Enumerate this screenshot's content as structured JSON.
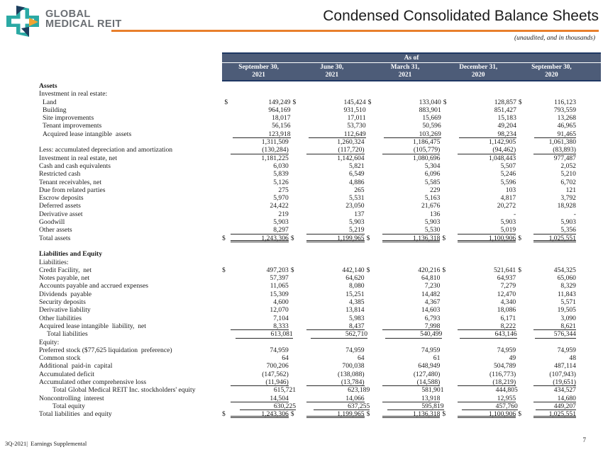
{
  "logo": {
    "name_line1": "GLOBAL",
    "name_line2": "MEDICAL REIT",
    "teal": "#2BA9A4",
    "navy": "#1D3E5E",
    "orange": "#F0A432"
  },
  "header": {
    "title": "Condensed Consolidated Balance Sheets",
    "subtitle": "(unaudited, and in thousands)",
    "rule_color": "#E87F2C"
  },
  "footer": {
    "left": "3Q-2021|  Earnings Supplemental",
    "page": "7"
  },
  "table": {
    "header_bg": "#4D5C78",
    "header_border": "#1F3864",
    "spanner": "As of",
    "columns": [
      {
        "line1": "September 30,",
        "line2": "2021"
      },
      {
        "line1": "June 30,",
        "line2": "2021"
      },
      {
        "line1": "March 31,",
        "line2": "2021"
      },
      {
        "line1": "December 31,",
        "line2": "2020"
      },
      {
        "line1": "September 30,",
        "line2": "2020"
      }
    ],
    "rows": [
      {
        "label": "Assets",
        "bold": true
      },
      {
        "label": "Investment in real estate:"
      },
      {
        "label": "Land",
        "indent": 1,
        "dollar": true,
        "values": [
          "149,249",
          "145,424",
          "133,040",
          "128,857",
          "116,123"
        ]
      },
      {
        "label": "Building",
        "indent": 1,
        "values": [
          "964,169",
          "931,510",
          "883,901",
          "851,427",
          "793,559"
        ]
      },
      {
        "label": "Site improvements",
        "indent": 1,
        "values": [
          "18,017",
          "17,011",
          "15,669",
          "15,183",
          "13,268"
        ]
      },
      {
        "label": "Tenant improvements",
        "indent": 1,
        "values": [
          "56,156",
          "53,730",
          "50,596",
          "49,204",
          "46,965"
        ]
      },
      {
        "label": "Acquired lease intangible  assets",
        "indent": 1,
        "rule": "bottom",
        "values": [
          "123,918",
          "112,649",
          "103,269",
          "98,234",
          "91,465"
        ]
      },
      {
        "label": "",
        "values": [
          "1,311,509",
          "1,260,324",
          "1,186,475",
          "1,142,905",
          "1,061,380"
        ]
      },
      {
        "label": "Less: accumulated depreciation and amortization",
        "rule": "bottom",
        "values": [
          "(130,284)",
          "(117,720)",
          "(105,779)",
          "(94,462)",
          "(83,893)"
        ]
      },
      {
        "label": "Investment in real estate, net",
        "values": [
          "1,181,225",
          "1,142,604",
          "1,080,696",
          "1,048,443",
          "977,487"
        ]
      },
      {
        "label": "Cash and cash equivalents",
        "values": [
          "6,030",
          "5,821",
          "5,304",
          "5,507",
          "2,052"
        ]
      },
      {
        "label": "Restricted cash",
        "values": [
          "5,839",
          "6,549",
          "6,096",
          "5,246",
          "5,210"
        ]
      },
      {
        "label": "Tenant receivables, net",
        "values": [
          "5,126",
          "4,886",
          "5,585",
          "5,596",
          "6,702"
        ]
      },
      {
        "label": "Due from related parties",
        "values": [
          "275",
          "265",
          "229",
          "103",
          "121"
        ]
      },
      {
        "label": "Escrow deposits",
        "values": [
          "5,970",
          "5,531",
          "5,163",
          "4,817",
          "3,792"
        ]
      },
      {
        "label": "Deferred assets",
        "values": [
          "24,422",
          "23,050",
          "21,676",
          "20,272",
          "18,928"
        ]
      },
      {
        "label": "Derivative asset",
        "values": [
          "219",
          "137",
          "136",
          "-",
          "-"
        ]
      },
      {
        "label": "Goodwill",
        "values": [
          "5,903",
          "5,903",
          "5,903",
          "5,903",
          "5,903"
        ]
      },
      {
        "label": "Other assets",
        "rule": "bottom",
        "values": [
          "8,297",
          "5,219",
          "5,530",
          "5,019",
          "5,356"
        ]
      },
      {
        "label": "Total assets",
        "dollar": true,
        "rule": "double",
        "values": [
          "1,243,306",
          "1,199,965",
          "1,136,318",
          "1,100,906",
          "1,025,551"
        ]
      },
      {
        "spacer": true
      },
      {
        "label": "Liabilities and Equity",
        "bold": true
      },
      {
        "label": "Liabilities:"
      },
      {
        "label": "Credit Facility,  net",
        "dollar": true,
        "values": [
          "497,203",
          "442,140",
          "420,216",
          "521,641",
          "454,325"
        ]
      },
      {
        "label": "Notes payable, net",
        "values": [
          "57,397",
          "64,620",
          "64,810",
          "64,937",
          "65,060"
        ]
      },
      {
        "label": "Accounts payable and accrued expenses",
        "values": [
          "11,065",
          "8,080",
          "7,230",
          "7,279",
          "8,329"
        ]
      },
      {
        "label": "Dividends  payable",
        "values": [
          "15,309",
          "15,251",
          "14,482",
          "12,470",
          "11,843"
        ]
      },
      {
        "label": "Security deposits",
        "values": [
          "4,600",
          "4,385",
          "4,367",
          "4,340",
          "5,571"
        ]
      },
      {
        "label": "Derivative liability",
        "values": [
          "12,070",
          "13,814",
          "14,603",
          "18,086",
          "19,505"
        ]
      },
      {
        "label": "Other liabilities",
        "values": [
          "7,104",
          "5,983",
          "6,793",
          "6,171",
          "3,090"
        ]
      },
      {
        "label": "Acquired lease intangible  liability,  net",
        "rule": "bottom",
        "values": [
          "8,333",
          "8,437",
          "7,998",
          "8,222",
          "8,621"
        ]
      },
      {
        "label": "Total liabilities",
        "indent": 2,
        "rule": "bottom",
        "values": [
          "613,081",
          "562,710",
          "540,499",
          "643,146",
          "576,344"
        ]
      },
      {
        "label": "Equity:"
      },
      {
        "label": "Preferred stock ($77,625 liquidation  preference)",
        "values": [
          "74,959",
          "74,959",
          "74,959",
          "74,959",
          "74,959"
        ]
      },
      {
        "label": "Common stock",
        "values": [
          "64",
          "64",
          "61",
          "49",
          "48"
        ]
      },
      {
        "label": "Additional  paid-in  capital",
        "values": [
          "700,206",
          "700,038",
          "648,949",
          "504,789",
          "487,114"
        ]
      },
      {
        "label": "Accumulated deficit",
        "values": [
          "(147,562)",
          "(138,088)",
          "(127,480)",
          "(116,773)",
          "(107,943)"
        ]
      },
      {
        "label": "Accumulated other comprehensive loss",
        "rule": "bottom",
        "values": [
          "(11,946)",
          "(13,784)",
          "(14,588)",
          "(18,219)",
          "(19,651)"
        ]
      },
      {
        "label": "Total Global Medical REIT Inc. stockholders' equity",
        "indent": 3,
        "values": [
          "615,721",
          "623,189",
          "581,901",
          "444,805",
          "434,527"
        ]
      },
      {
        "label": "Noncontrolling  interest",
        "rule": "bottom",
        "values": [
          "14,504",
          "14,066",
          "13,918",
          "12,955",
          "14,680"
        ]
      },
      {
        "label": "Total equity",
        "indent": 3,
        "rule": "bottom",
        "values": [
          "630,225",
          "637,255",
          "595,819",
          "457,760",
          "449,207"
        ]
      },
      {
        "label": "Total liabilities  and equity",
        "dollar": true,
        "rule": "double",
        "values": [
          "1,243,306",
          "1,199,965",
          "1,136,318",
          "1,100,906",
          "1,025,551"
        ]
      }
    ]
  }
}
